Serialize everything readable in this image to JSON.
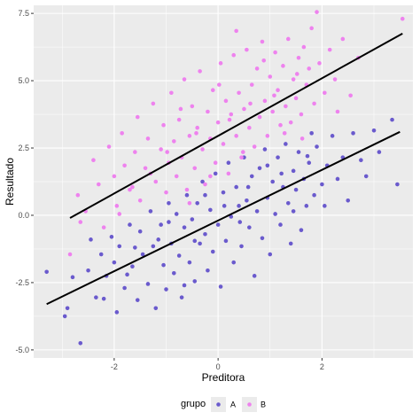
{
  "chart_data": {
    "type": "scatter",
    "title": "",
    "xlabel": "Preditora",
    "ylabel": "Resultado",
    "xlim": [
      -3.55,
      3.75
    ],
    "ylim": [
      -5.3,
      7.8
    ],
    "x_ticks": [
      -2,
      0,
      2
    ],
    "x_tick_labels": [
      "-2",
      "0",
      "2"
    ],
    "y_ticks": [
      -5.0,
      -2.5,
      0.0,
      2.5,
      5.0,
      7.5
    ],
    "y_tick_labels": [
      "-5.0",
      "-2.5",
      "0.0",
      "2.5",
      "5.0",
      "7.5"
    ],
    "grid": true,
    "legend": {
      "title": "grupo",
      "placement": "bottom",
      "entries": [
        "A",
        "B"
      ]
    },
    "series": [
      {
        "name": "A",
        "color": "#6a5acd",
        "points": [
          [
            -3.3,
            -2.1
          ],
          [
            -2.95,
            -3.75
          ],
          [
            -2.9,
            -3.45
          ],
          [
            -2.65,
            -4.75
          ],
          [
            -2.5,
            -2.05
          ],
          [
            -2.45,
            -0.9
          ],
          [
            -2.35,
            -3.05
          ],
          [
            -2.25,
            -1.45
          ],
          [
            -2.15,
            -2.25
          ],
          [
            -2.05,
            -0.8
          ],
          [
            -1.95,
            -3.6
          ],
          [
            -1.9,
            -1.15
          ],
          [
            -1.8,
            -2.7
          ],
          [
            -1.7,
            -0.35
          ],
          [
            -1.65,
            -1.9
          ],
          [
            -1.55,
            -3.15
          ],
          [
            -1.5,
            -0.6
          ],
          [
            -1.45,
            -1.45
          ],
          [
            -1.35,
            -2.55
          ],
          [
            -1.3,
            0.15
          ],
          [
            -1.25,
            -1.15
          ],
          [
            -1.2,
            -3.45
          ],
          [
            -1.1,
            -0.35
          ],
          [
            -1.05,
            -1.85
          ],
          [
            -1.0,
            -2.75
          ],
          [
            -0.95,
            0.45
          ],
          [
            -0.9,
            -1.05
          ],
          [
            -0.85,
            -2.15
          ],
          [
            -0.8,
            0.05
          ],
          [
            -0.75,
            -1.5
          ],
          [
            -0.7,
            -3.05
          ],
          [
            -0.65,
            -0.45
          ],
          [
            -0.6,
            0.75
          ],
          [
            -0.55,
            -1.75
          ],
          [
            -0.5,
            -0.15
          ],
          [
            -0.45,
            -2.45
          ],
          [
            -0.4,
            0.45
          ],
          [
            -0.35,
            -1.05
          ],
          [
            -0.3,
            1.25
          ],
          [
            -0.25,
            -0.7
          ],
          [
            -0.2,
            -2.05
          ],
          [
            -0.15,
            0.2
          ],
          [
            -0.1,
            -1.35
          ],
          [
            -0.05,
            1.55
          ],
          [
            0.0,
            -0.35
          ],
          [
            0.05,
            -2.65
          ],
          [
            0.1,
            0.85
          ],
          [
            0.15,
            -0.95
          ],
          [
            0.2,
            1.95
          ],
          [
            0.25,
            -0.05
          ],
          [
            0.3,
            -1.75
          ],
          [
            0.35,
            1.05
          ],
          [
            0.4,
            0.35
          ],
          [
            0.45,
            -1.15
          ],
          [
            0.5,
            2.15
          ],
          [
            0.55,
            0.55
          ],
          [
            0.6,
            -0.45
          ],
          [
            0.65,
            1.45
          ],
          [
            0.7,
            -2.25
          ],
          [
            0.75,
            0.15
          ],
          [
            0.8,
            1.75
          ],
          [
            0.85,
            -0.85
          ],
          [
            0.9,
            2.45
          ],
          [
            0.95,
            0.65
          ],
          [
            1.0,
            -1.45
          ],
          [
            1.05,
            1.25
          ],
          [
            1.1,
            0.05
          ],
          [
            1.15,
            2.15
          ],
          [
            1.2,
            -0.35
          ],
          [
            1.25,
            1.05
          ],
          [
            1.3,
            2.65
          ],
          [
            1.35,
            0.45
          ],
          [
            1.4,
            -1.05
          ],
          [
            1.45,
            1.65
          ],
          [
            1.5,
            0.95
          ],
          [
            1.55,
            2.35
          ],
          [
            1.6,
            -0.55
          ],
          [
            1.65,
            1.35
          ],
          [
            1.7,
            0.35
          ],
          [
            1.75,
            1.95
          ],
          [
            1.8,
            3.05
          ],
          [
            1.85,
            0.75
          ],
          [
            1.9,
            2.55
          ],
          [
            2.0,
            1.15
          ],
          [
            2.05,
            0.35
          ],
          [
            2.1,
            1.85
          ],
          [
            2.2,
            2.95
          ],
          [
            2.3,
            1.35
          ],
          [
            2.4,
            2.15
          ],
          [
            2.5,
            0.55
          ],
          [
            2.6,
            3.05
          ],
          [
            2.75,
            2.05
          ],
          [
            2.85,
            1.45
          ],
          [
            3.0,
            3.15
          ],
          [
            3.1,
            2.35
          ],
          [
            3.35,
            3.55
          ],
          [
            3.45,
            1.15
          ],
          [
            -2.8,
            -2.3
          ],
          [
            -2.0,
            -1.75
          ],
          [
            -1.6,
            -1.2
          ],
          [
            -0.95,
            -0.25
          ],
          [
            -0.45,
            -0.95
          ],
          [
            0.12,
            0.35
          ],
          [
            0.58,
            1.05
          ],
          [
            1.22,
            1.55
          ],
          [
            1.72,
            2.2
          ],
          [
            -1.15,
            -0.9
          ],
          [
            -0.25,
            0.75
          ],
          [
            0.42,
            -0.25
          ],
          [
            0.95,
            1.85
          ],
          [
            1.45,
            0.15
          ],
          [
            -2.2,
            -3.1
          ],
          [
            -1.75,
            -2.2
          ],
          [
            -0.65,
            -2.6
          ]
        ]
      },
      {
        "name": "B",
        "color": "#ee82ee",
        "points": [
          [
            -2.85,
            -1.45
          ],
          [
            -2.7,
            0.75
          ],
          [
            -2.55,
            0.15
          ],
          [
            -2.4,
            2.05
          ],
          [
            -2.3,
            1.15
          ],
          [
            -2.2,
            -0.45
          ],
          [
            -2.1,
            2.55
          ],
          [
            -2.0,
            1.45
          ],
          [
            -1.95,
            0.35
          ],
          [
            -1.85,
            3.05
          ],
          [
            -1.8,
            1.85
          ],
          [
            -1.7,
            0.95
          ],
          [
            -1.6,
            2.35
          ],
          [
            -1.55,
            3.65
          ],
          [
            -1.5,
            0.55
          ],
          [
            -1.4,
            1.75
          ],
          [
            -1.35,
            2.85
          ],
          [
            -1.25,
            4.15
          ],
          [
            -1.2,
            1.25
          ],
          [
            -1.1,
            2.45
          ],
          [
            -1.05,
            3.35
          ],
          [
            -1.0,
            0.85
          ],
          [
            -0.95,
            1.95
          ],
          [
            -0.9,
            4.55
          ],
          [
            -0.85,
            2.75
          ],
          [
            -0.8,
            1.45
          ],
          [
            -0.75,
            3.55
          ],
          [
            -0.7,
            2.15
          ],
          [
            -0.65,
            5.05
          ],
          [
            -0.6,
            0.95
          ],
          [
            -0.55,
            2.95
          ],
          [
            -0.5,
            4.05
          ],
          [
            -0.45,
            1.75
          ],
          [
            -0.4,
            3.25
          ],
          [
            -0.35,
            5.35
          ],
          [
            -0.3,
            2.45
          ],
          [
            -0.25,
            1.15
          ],
          [
            -0.2,
            3.85
          ],
          [
            -0.15,
            2.85
          ],
          [
            -0.1,
            4.65
          ],
          [
            -0.05,
            1.95
          ],
          [
            0.0,
            3.45
          ],
          [
            0.05,
            5.65
          ],
          [
            0.1,
            2.65
          ],
          [
            0.15,
            4.25
          ],
          [
            0.2,
            1.55
          ],
          [
            0.25,
            3.75
          ],
          [
            0.3,
            5.95
          ],
          [
            0.35,
            2.95
          ],
          [
            0.4,
            4.55
          ],
          [
            0.45,
            2.15
          ],
          [
            0.5,
            3.95
          ],
          [
            0.55,
            6.15
          ],
          [
            0.6,
            3.25
          ],
          [
            0.65,
            4.85
          ],
          [
            0.7,
            2.55
          ],
          [
            0.75,
            5.45
          ],
          [
            0.8,
            3.65
          ],
          [
            0.85,
            6.45
          ],
          [
            0.9,
            4.25
          ],
          [
            0.95,
            2.95
          ],
          [
            1.0,
            5.15
          ],
          [
            1.05,
            3.85
          ],
          [
            1.1,
            6.05
          ],
          [
            1.15,
            4.65
          ],
          [
            1.2,
            3.35
          ],
          [
            1.25,
            5.55
          ],
          [
            1.3,
            4.05
          ],
          [
            1.35,
            6.55
          ],
          [
            1.4,
            3.45
          ],
          [
            1.45,
            5.05
          ],
          [
            1.5,
            4.35
          ],
          [
            1.55,
            5.85
          ],
          [
            1.6,
            3.75
          ],
          [
            1.65,
            6.25
          ],
          [
            1.7,
            4.85
          ],
          [
            1.75,
            5.45
          ],
          [
            1.8,
            6.95
          ],
          [
            1.85,
            4.15
          ],
          [
            1.9,
            7.55
          ],
          [
            1.95,
            5.65
          ],
          [
            2.05,
            4.55
          ],
          [
            2.15,
            6.15
          ],
          [
            2.25,
            5.05
          ],
          [
            2.4,
            6.55
          ],
          [
            2.55,
            4.45
          ],
          [
            2.7,
            5.85
          ],
          [
            3.55,
            7.3
          ],
          [
            -1.65,
            1.05
          ],
          [
            -0.98,
            2.35
          ],
          [
            -0.42,
            3.05
          ],
          [
            0.22,
            3.55
          ],
          [
            0.62,
            4.15
          ],
          [
            1.08,
            4.45
          ],
          [
            1.52,
            5.25
          ],
          [
            -0.72,
            3.95
          ],
          [
            0.02,
            4.85
          ],
          [
            0.48,
            2.35
          ],
          [
            1.28,
            3.05
          ],
          [
            -1.3,
            1.55
          ],
          [
            -0.15,
            1.45
          ],
          [
            0.88,
            5.75
          ],
          [
            2.3,
            3.85
          ],
          [
            -2.65,
            -0.25
          ],
          [
            -1.9,
            0.05
          ],
          [
            0.35,
            6.85
          ],
          [
            1.62,
            2.85
          ],
          [
            -0.55,
            0.45
          ]
        ]
      }
    ],
    "fit_lines": [
      {
        "group": "A",
        "x": [
          -3.3,
          3.5
        ],
        "y": [
          -3.3,
          3.1
        ]
      },
      {
        "group": "B",
        "x": [
          -2.85,
          3.55
        ],
        "y": [
          -0.1,
          6.75
        ]
      }
    ]
  }
}
